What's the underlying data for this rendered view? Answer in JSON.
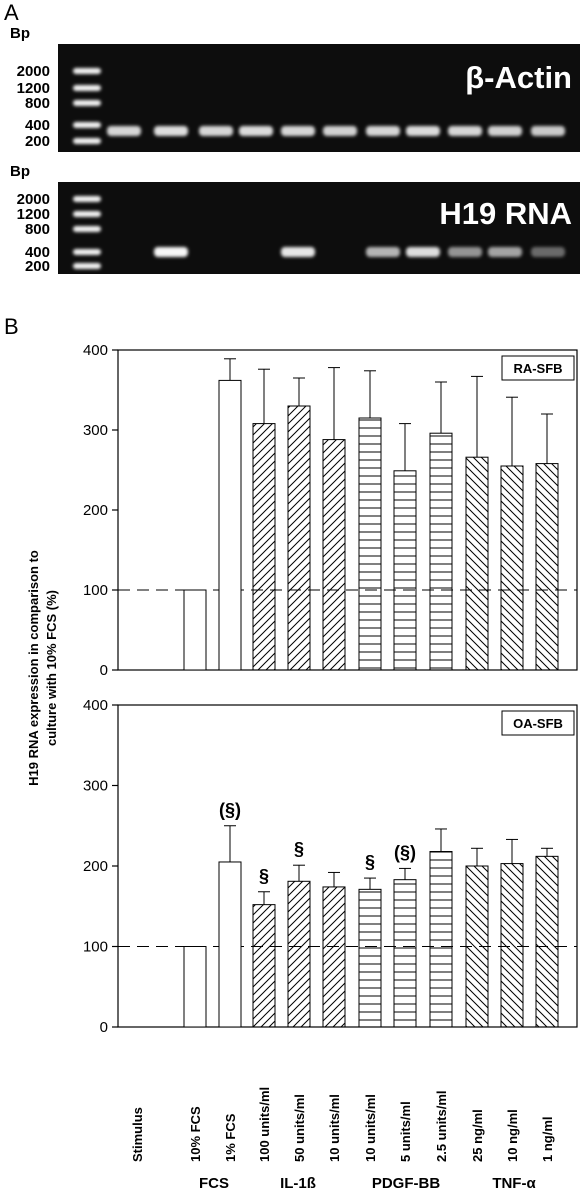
{
  "panel_a": {
    "letter": "A",
    "gels": [
      {
        "bp_label": "Bp",
        "ladder": [
          "2000",
          "1200",
          "800",
          "400",
          "200"
        ],
        "title": "β-Actin",
        "lane_intensity": [
          0.75,
          0.8,
          0.75,
          0.78,
          0.75,
          0.72,
          0.75,
          0.78,
          0.75,
          0.72,
          0.68
        ]
      },
      {
        "bp_label": "Bp",
        "ladder": [
          "2000",
          "1200",
          "800",
          "400",
          "200"
        ],
        "title": "H19 RNA",
        "lane_intensity": [
          0,
          0.95,
          0,
          0,
          0.85,
          0,
          0.55,
          0.8,
          0.35,
          0.45,
          0.1
        ]
      }
    ]
  },
  "panel_b": {
    "letter": "B",
    "ylabel_line1": "H19 RNA expression in comparison to",
    "ylabel_line2": "culture with 10% FCS (%)"
  },
  "chart_data": [
    {
      "type": "bar",
      "legend": "RA-SFB",
      "categories": [
        "Stimulus",
        "10% FCS",
        "1% FCS",
        "100 units/ml",
        "50 units/ml",
        "10 units/ml",
        "10 units/ml",
        "5 units/ml",
        "2.5 units/ml",
        "25 ng/ml",
        "10 ng/ml",
        "1 ng/ml"
      ],
      "groups": [
        "",
        "FCS",
        "FCS",
        "IL-1ß",
        "IL-1ß",
        "IL-1ß",
        "PDGF-BB",
        "PDGF-BB",
        "PDGF-BB",
        "TNF-α",
        "TNF-α",
        "TNF-α"
      ],
      "patterns": [
        "none",
        "plain",
        "plain",
        "diag",
        "diag",
        "diag",
        "horiz",
        "horiz",
        "horiz",
        "back",
        "back",
        "back"
      ],
      "values": [
        null,
        100,
        362,
        308,
        330,
        288,
        315,
        249,
        296,
        266,
        255,
        258
      ],
      "errors": [
        null,
        0,
        27,
        68,
        35,
        90,
        59,
        59,
        64,
        101,
        86,
        62
      ],
      "annotations": [],
      "reference_line": 100,
      "ylim": [
        0,
        400
      ],
      "yticks": [
        0,
        100,
        200,
        300,
        400
      ]
    },
    {
      "type": "bar",
      "legend": "OA-SFB",
      "categories": [
        "Stimulus",
        "10% FCS",
        "1% FCS",
        "100 units/ml",
        "50 units/ml",
        "10 units/ml",
        "10 units/ml",
        "5 units/ml",
        "2.5 units/ml",
        "25 ng/ml",
        "10 ng/ml",
        "1 ng/ml"
      ],
      "groups": [
        "",
        "FCS",
        "FCS",
        "IL-1ß",
        "IL-1ß",
        "IL-1ß",
        "PDGF-BB",
        "PDGF-BB",
        "PDGF-BB",
        "TNF-α",
        "TNF-α",
        "TNF-α"
      ],
      "patterns": [
        "none",
        "plain",
        "plain",
        "diag",
        "diag",
        "diag",
        "horiz",
        "horiz",
        "horiz",
        "back",
        "back",
        "back"
      ],
      "values": [
        null,
        100,
        205,
        152,
        181,
        174,
        171,
        183,
        218,
        200,
        203,
        212
      ],
      "errors": [
        null,
        0,
        45,
        16,
        20,
        18,
        14,
        14,
        28,
        22,
        30,
        10
      ],
      "annotations": [
        null,
        null,
        "(§)",
        "§",
        "§",
        null,
        "§",
        "(§)",
        null,
        null,
        null,
        null
      ],
      "reference_line": 100,
      "ylim": [
        0,
        400
      ],
      "yticks": [
        0,
        100,
        200,
        300,
        400
      ]
    }
  ],
  "group_labels": [
    "FCS",
    "IL-1ß",
    "PDGF-BB",
    "TNF-α"
  ]
}
